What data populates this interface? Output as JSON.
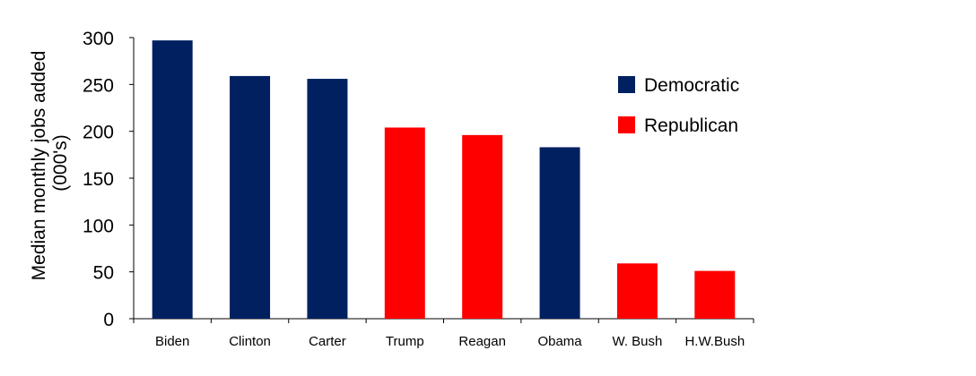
{
  "chart_data": {
    "type": "bar",
    "title": "",
    "xlabel": "",
    "ylabel_lines": [
      "Median monthly jobs added",
      "(000's)"
    ],
    "categories": [
      "Biden",
      "Clinton",
      "Carter",
      "Trump",
      "Reagan",
      "Obama",
      "W. Bush",
      "H.W.Bush"
    ],
    "values": [
      297,
      259,
      256,
      204,
      196,
      183,
      59,
      51
    ],
    "parties": [
      "Democratic",
      "Democratic",
      "Democratic",
      "Republican",
      "Republican",
      "Democratic",
      "Republican",
      "Republican"
    ],
    "ylim": [
      0,
      300
    ],
    "yticks": [
      0,
      50,
      100,
      150,
      200,
      250,
      300
    ],
    "grid": false,
    "legend_position": "top-right",
    "legend": [
      {
        "name": "Democratic",
        "color": "#002060"
      },
      {
        "name": "Republican",
        "color": "#ff0000"
      }
    ]
  }
}
